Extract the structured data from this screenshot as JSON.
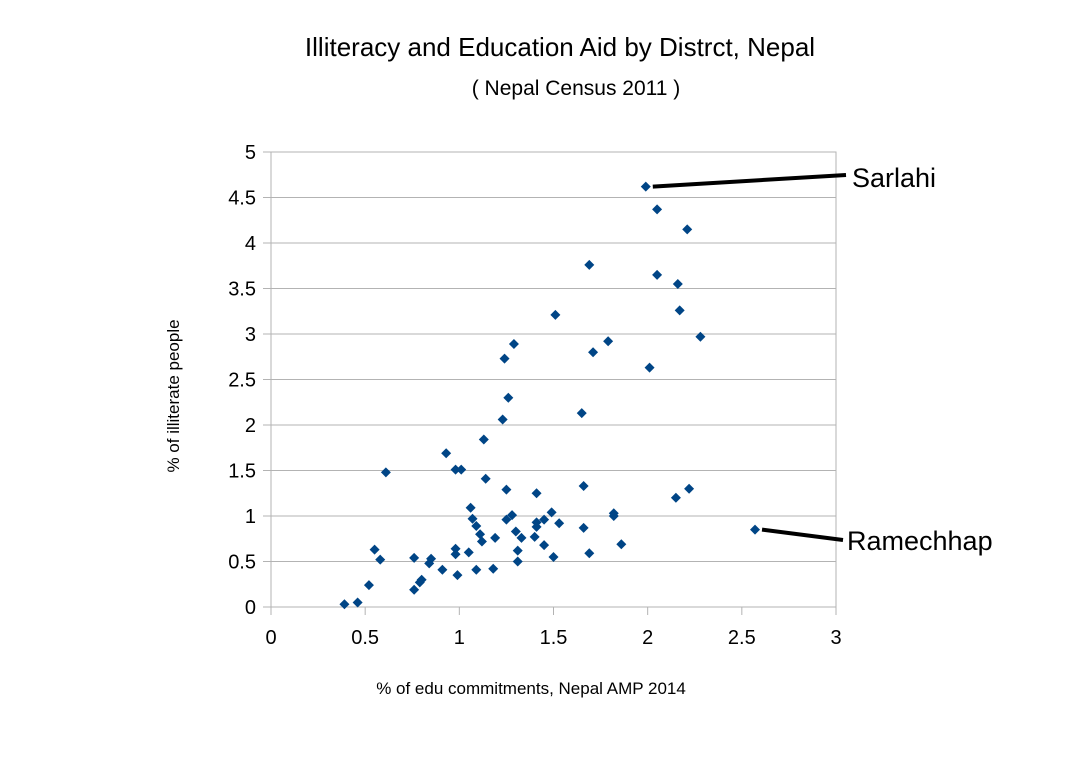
{
  "chart_data": {
    "type": "scatter",
    "title": "Illiteracy and Education Aid by Distrct, Nepal",
    "subtitle": "( Nepal Census 2011 )",
    "xlabel": "% of edu commitments, Nepal AMP 2014",
    "ylabel": "% of illiterate people",
    "xlim": [
      0,
      3
    ],
    "ylim": [
      0,
      5
    ],
    "xticks": [
      "0",
      "0.5",
      "1",
      "1.5",
      "2",
      "2.5",
      "3"
    ],
    "yticks": [
      "0",
      "0.5",
      "1",
      "1.5",
      "2",
      "2.5",
      "3",
      "3.5",
      "4",
      "4.5",
      "5"
    ],
    "grid": "horizontal",
    "marker_color": "#004586",
    "points": [
      [
        1.99,
        4.62
      ],
      [
        2.05,
        4.37
      ],
      [
        2.21,
        4.15
      ],
      [
        1.69,
        3.76
      ],
      [
        2.05,
        3.65
      ],
      [
        2.16,
        3.55
      ],
      [
        2.17,
        3.26
      ],
      [
        1.51,
        3.21
      ],
      [
        2.28,
        2.97
      ],
      [
        1.29,
        2.89
      ],
      [
        1.79,
        2.92
      ],
      [
        1.71,
        2.8
      ],
      [
        1.24,
        2.73
      ],
      [
        2.01,
        2.63
      ],
      [
        1.26,
        2.3
      ],
      [
        1.65,
        2.13
      ],
      [
        1.23,
        2.06
      ],
      [
        1.13,
        1.84
      ],
      [
        0.93,
        1.69
      ],
      [
        0.98,
        1.51
      ],
      [
        1.01,
        1.51
      ],
      [
        0.61,
        1.48
      ],
      [
        1.14,
        1.41
      ],
      [
        1.66,
        1.33
      ],
      [
        2.22,
        1.3
      ],
      [
        1.25,
        1.29
      ],
      [
        1.41,
        1.25
      ],
      [
        2.15,
        1.2
      ],
      [
        1.06,
        1.09
      ],
      [
        1.82,
        1.03
      ],
      [
        1.49,
        1.04
      ],
      [
        1.28,
        1.01
      ],
      [
        1.82,
        1.0
      ],
      [
        1.07,
        0.97
      ],
      [
        1.25,
        0.96
      ],
      [
        1.45,
        0.96
      ],
      [
        1.41,
        0.93
      ],
      [
        1.53,
        0.92
      ],
      [
        1.09,
        0.89
      ],
      [
        1.41,
        0.88
      ],
      [
        1.66,
        0.87
      ],
      [
        2.57,
        0.85
      ],
      [
        1.3,
        0.83
      ],
      [
        1.11,
        0.8
      ],
      [
        1.4,
        0.77
      ],
      [
        1.33,
        0.76
      ],
      [
        1.19,
        0.76
      ],
      [
        1.12,
        0.72
      ],
      [
        1.86,
        0.69
      ],
      [
        1.45,
        0.68
      ],
      [
        0.98,
        0.64
      ],
      [
        0.55,
        0.63
      ],
      [
        1.31,
        0.62
      ],
      [
        1.05,
        0.6
      ],
      [
        0.98,
        0.58
      ],
      [
        1.69,
        0.59
      ],
      [
        1.5,
        0.55
      ],
      [
        0.76,
        0.54
      ],
      [
        0.85,
        0.53
      ],
      [
        0.58,
        0.52
      ],
      [
        1.31,
        0.5
      ],
      [
        0.84,
        0.48
      ],
      [
        0.91,
        0.41
      ],
      [
        1.09,
        0.41
      ],
      [
        1.18,
        0.42
      ],
      [
        0.99,
        0.35
      ],
      [
        0.8,
        0.3
      ],
      [
        0.79,
        0.27
      ],
      [
        0.52,
        0.24
      ],
      [
        0.76,
        0.19
      ],
      [
        0.46,
        0.05
      ],
      [
        0.39,
        0.03
      ]
    ],
    "annotations": [
      {
        "label": "Sarlahi",
        "point": [
          1.99,
          4.62
        ]
      },
      {
        "label": "Ramechhap",
        "point": [
          2.57,
          0.85
        ]
      }
    ]
  }
}
